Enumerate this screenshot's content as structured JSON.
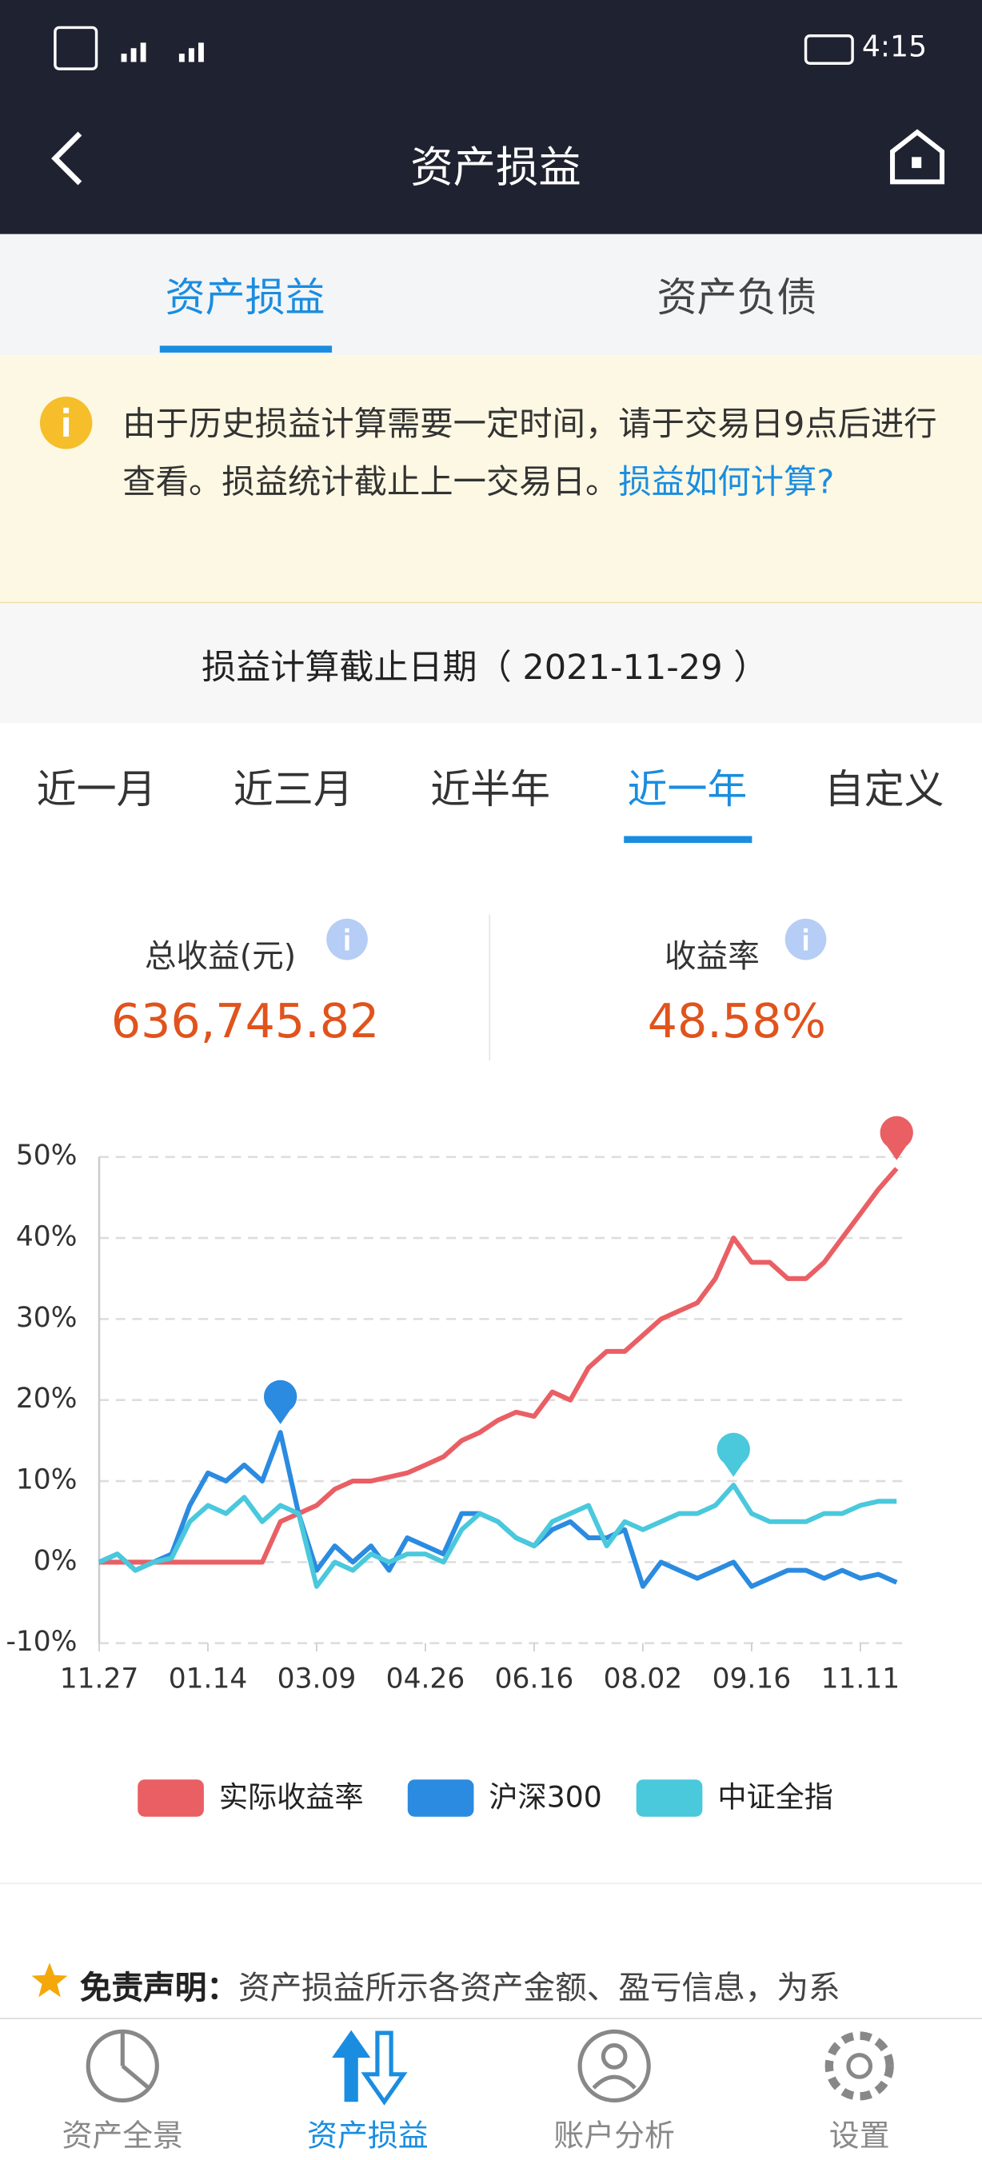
{
  "status_bar": {
    "time": "4:15"
  },
  "header": {
    "title": "资产损益"
  },
  "tabs": [
    "资产损益",
    "资产负债"
  ],
  "notice": {
    "text": "由于历史损益计算需要一定时间，请于交易日9点后进行查看。损益统计截止上一交易日。",
    "link": "损益如何计算?"
  },
  "date_line": "损益计算截止日期（ 2021-11-29 ）",
  "periods": [
    "近一月",
    "近三月",
    "近半年",
    "近一年",
    "自定义"
  ],
  "summary": {
    "total_label": "总收益(元)",
    "total_value": "636,745.82",
    "rate_label": "收益率",
    "rate_value": "48.58%"
  },
  "chart_data": {
    "type": "line",
    "categories": [
      "11.27",
      null,
      null,
      null,
      null,
      null,
      "01.14",
      null,
      null,
      null,
      null,
      null,
      "03.09",
      null,
      null,
      null,
      null,
      null,
      "04.26",
      null,
      null,
      null,
      null,
      null,
      "06.16",
      null,
      null,
      null,
      null,
      null,
      "08.02",
      null,
      null,
      null,
      null,
      null,
      "09.16",
      null,
      null,
      null,
      null,
      null,
      "11.11",
      null,
      null
    ],
    "series": [
      {
        "name": "实际收益率",
        "color": "#e95f64",
        "values": [
          0,
          0,
          0,
          0,
          0,
          0,
          0,
          0,
          0,
          0,
          5,
          6,
          7,
          9,
          10,
          10,
          10.5,
          11,
          12,
          13,
          15,
          16,
          17.5,
          18.5,
          18,
          21,
          20,
          24,
          26,
          26,
          28,
          30,
          31,
          32,
          35,
          40,
          37,
          37,
          35,
          35,
          37,
          40,
          43,
          46,
          48.58
        ]
      },
      {
        "name": "沪深300",
        "color": "#2b8be0",
        "values": [
          0,
          1,
          -1,
          0,
          1,
          7,
          11,
          10,
          12,
          10,
          16,
          6,
          -1,
          2,
          0,
          2,
          -1,
          3,
          2,
          1,
          6,
          6,
          5,
          3,
          2,
          4,
          5,
          3,
          3,
          4,
          -3,
          0,
          -1,
          -2,
          -1,
          0,
          -3,
          -2,
          -1,
          -1,
          -2,
          -1,
          -2,
          -1.5,
          -2.5
        ]
      },
      {
        "name": "中证全指",
        "color": "#4ac8dc",
        "values": [
          0,
          1,
          -1,
          0,
          0.5,
          5,
          7,
          6,
          8,
          5,
          7,
          6,
          -3,
          0,
          -1,
          1,
          0,
          1,
          1,
          0,
          4,
          6,
          5,
          3,
          2,
          5,
          6,
          7,
          2,
          5,
          4,
          5,
          6,
          6,
          7,
          9.5,
          6,
          5,
          5,
          5,
          6,
          6,
          7,
          7.5,
          7.5
        ]
      }
    ],
    "ylim": [
      -10,
      50
    ],
    "yticks": [
      {
        "value": -10,
        "label": "-10%"
      },
      {
        "value": 0,
        "label": "0%"
      },
      {
        "value": 10,
        "label": "10%"
      },
      {
        "value": 20,
        "label": "20%"
      },
      {
        "value": 30,
        "label": "30%"
      },
      {
        "value": 40,
        "label": "40%"
      },
      {
        "value": 50,
        "label": "50%"
      }
    ],
    "grid": true,
    "legend": "bottom"
  },
  "disclaimer": {
    "label": "免责声明：",
    "text": "资产损益所示各资产金额、盈亏信息，为系"
  },
  "nav": [
    "资产全景",
    "资产损益",
    "账户分析",
    "设置"
  ]
}
